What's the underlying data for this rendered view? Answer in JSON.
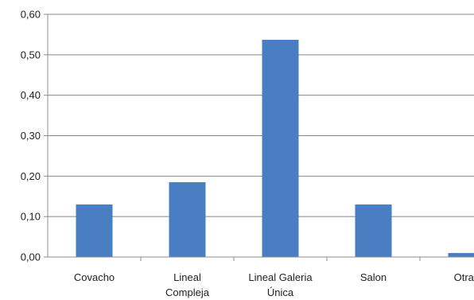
{
  "chart_data": {
    "type": "bar",
    "categories": [
      [
        "Covacho"
      ],
      [
        "Lineal",
        "Compleja"
      ],
      [
        "Lineal Galeria",
        "Única"
      ],
      [
        "Salon"
      ],
      [
        "Otras"
      ]
    ],
    "values": [
      0.13,
      0.185,
      0.537,
      0.13,
      0.01
    ],
    "ylim": [
      0,
      0.6
    ],
    "yticks": [
      "0,00",
      "0,10",
      "0,20",
      "0,30",
      "0,40",
      "0,50",
      "0,60"
    ],
    "grid": true,
    "legend": "none",
    "bar_color": "#4a7ec2",
    "grid_color": "#888888",
    "axis_color": "#8c8c8c"
  }
}
